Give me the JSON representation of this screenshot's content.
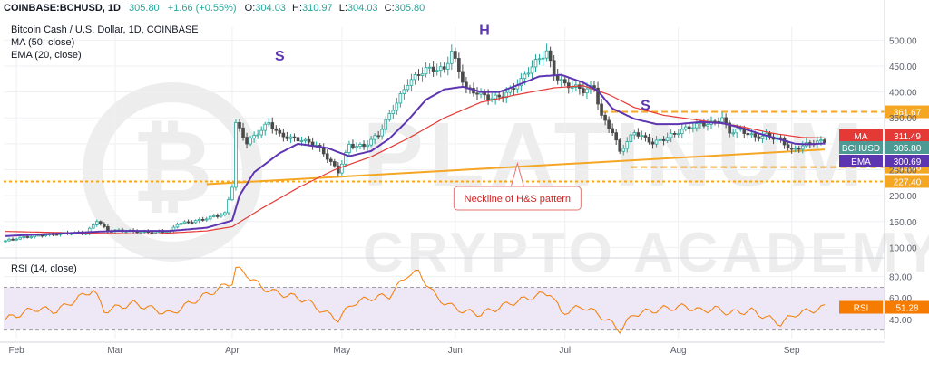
{
  "header": {
    "symbol_line": "COINBASE:BCHUSD, 1D",
    "ohlc": [
      {
        "label": "O:",
        "value": "304.03"
      },
      {
        "label": "H:",
        "value": "310.97"
      },
      {
        "label": "L:",
        "value": "304.03"
      },
      {
        "label": "C:",
        "value": "305.80"
      }
    ],
    "last": "305.80",
    "change": "+1.66 (+0.55%)",
    "title": "Bitcoin Cash / U.S. Dollar, 1D, COINBASE",
    "ma_legend": "MA (50, close)",
    "ema_legend": "EMA (20, close)",
    "rsi_legend": "RSI (14, close)"
  },
  "colors": {
    "candle_up": "#26a69a",
    "candle_down": "#4a4a4a",
    "ma": "#e53935",
    "ema": "#5e35b1",
    "neckline": "#f5a623",
    "level": "#f5a623",
    "rsi": "#f57c00",
    "rsi_band": "#ede7f6",
    "grid": "#eef0f3",
    "annotation_text": "#5e35b1",
    "callout_border": "#e57373",
    "callout_text": "#c62828"
  },
  "watermark": {
    "line1": "PLATINUM",
    "line2": "CRYPTO ACADEMY"
  },
  "chart_data": [
    {
      "type": "candlestick",
      "title": "Bitcoin Cash / U.S. Dollar, 1D, COINBASE",
      "x_labels": [
        "Feb",
        "Mar",
        "Apr",
        "May",
        "Jun",
        "Jul",
        "Aug",
        "Sep"
      ],
      "x_label_day_index": [
        3,
        30,
        62,
        92,
        123,
        153,
        184,
        215
      ],
      "y_ticks": [
        "500.00",
        "450.00",
        "400.00",
        "350.00",
        "300.00",
        "250.00",
        "200.00",
        "150.00",
        "100.00"
      ],
      "ylim": [
        85,
        525
      ],
      "series": [
        {
          "name": "BCHUSD",
          "key_points": [
            [
              0,
              113
            ],
            [
              10,
              125
            ],
            [
              22,
              128
            ],
            [
              25,
              153
            ],
            [
              28,
              132
            ],
            [
              45,
              130
            ],
            [
              47,
              145
            ],
            [
              60,
              164
            ],
            [
              62,
              218
            ],
            [
              63,
              340
            ],
            [
              66,
              305
            ],
            [
              72,
              338
            ],
            [
              75,
              315
            ],
            [
              81,
              310
            ],
            [
              85,
              296
            ],
            [
              91,
              246
            ],
            [
              94,
              300
            ],
            [
              98,
              295
            ],
            [
              102,
              315
            ],
            [
              106,
              370
            ],
            [
              110,
              420
            ],
            [
              115,
              440
            ],
            [
              120,
              445
            ],
            [
              122,
              482
            ],
            [
              126,
              405
            ],
            [
              130,
              392
            ],
            [
              133,
              388
            ],
            [
              137,
              400
            ],
            [
              141,
              420
            ],
            [
              145,
              455
            ],
            [
              148,
              480
            ],
            [
              150,
              438
            ],
            [
              153,
              415
            ],
            [
              158,
              400
            ],
            [
              161,
              410
            ],
            [
              163,
              355
            ],
            [
              166,
              325
            ],
            [
              168,
              284
            ],
            [
              172,
              320
            ],
            [
              177,
              304
            ],
            [
              183,
              318
            ],
            [
              187,
              330
            ],
            [
              190,
              340
            ],
            [
              193,
              342
            ],
            [
              196,
              349
            ],
            [
              198,
              320
            ],
            [
              201,
              325
            ],
            [
              205,
              315
            ],
            [
              208,
              318
            ],
            [
              212,
              305
            ],
            [
              215,
              285
            ],
            [
              218,
              298
            ],
            [
              221,
              306
            ],
            [
              224,
              304
            ]
          ]
        },
        {
          "name": "MA",
          "key_points": [
            [
              0,
              131
            ],
            [
              20,
              128
            ],
            [
              40,
              126
            ],
            [
              55,
              132
            ],
            [
              62,
              140
            ],
            [
              70,
              175
            ],
            [
              80,
              215
            ],
            [
              90,
              250
            ],
            [
              100,
              275
            ],
            [
              110,
              310
            ],
            [
              120,
              350
            ],
            [
              130,
              380
            ],
            [
              140,
              395
            ],
            [
              150,
              408
            ],
            [
              158,
              412
            ],
            [
              165,
              395
            ],
            [
              172,
              370
            ],
            [
              180,
              355
            ],
            [
              190,
              345
            ],
            [
              200,
              335
            ],
            [
              210,
              320
            ],
            [
              218,
              312
            ],
            [
              224,
              311.49
            ]
          ]
        },
        {
          "name": "EMA",
          "key_points": [
            [
              0,
              122
            ],
            [
              15,
              127
            ],
            [
              30,
              132
            ],
            [
              45,
              132
            ],
            [
              55,
              138
            ],
            [
              62,
              152
            ],
            [
              64,
              200
            ],
            [
              68,
              245
            ],
            [
              75,
              282
            ],
            [
              80,
              300
            ],
            [
              88,
              292
            ],
            [
              94,
              276
            ],
            [
              100,
              286
            ],
            [
              105,
              310
            ],
            [
              110,
              345
            ],
            [
              115,
              385
            ],
            [
              120,
              405
            ],
            [
              125,
              410
            ],
            [
              130,
              400
            ],
            [
              135,
              400
            ],
            [
              140,
              413
            ],
            [
              146,
              430
            ],
            [
              152,
              433
            ],
            [
              158,
              418
            ],
            [
              162,
              402
            ],
            [
              166,
              368
            ],
            [
              172,
              348
            ],
            [
              178,
              338
            ],
            [
              184,
              338
            ],
            [
              190,
              342
            ],
            [
              196,
              340
            ],
            [
              200,
              333
            ],
            [
              206,
              320
            ],
            [
              212,
              308
            ],
            [
              216,
              300
            ],
            [
              220,
              299
            ],
            [
              224,
              300.69
            ]
          ]
        }
      ],
      "last_values": {
        "MA": "311.49",
        "BCHUSD": "305.80",
        "EMA": "300.69"
      },
      "price_tags": {
        "MA": "MA",
        "BCHUSD": "BCHUSD",
        "EMA": "EMA"
      },
      "horizontal_levels": [
        {
          "label": "361.67",
          "value": 361.67
        },
        {
          "label": "255.06",
          "value": 255.06
        },
        {
          "label": "227.40",
          "value": 227.4
        }
      ],
      "neckline": {
        "start": [
          55,
          222
        ],
        "end": [
          224,
          289
        ]
      },
      "annotations": [
        {
          "text": "S",
          "at": [
            75,
            460
          ]
        },
        {
          "text": "H",
          "at": [
            131,
            510
          ]
        },
        {
          "text": "S",
          "at": [
            175,
            365
          ]
        }
      ],
      "callout": {
        "text": "Neckline of H&S pattern",
        "anchor": [
          140,
          262
        ]
      }
    },
    {
      "type": "line",
      "title": "RSI (14, close)",
      "ylim": [
        22,
        95
      ],
      "y_ticks": [
        "80.00",
        "60.00",
        "40.00"
      ],
      "band": [
        30,
        70
      ],
      "series": [
        {
          "name": "RSI",
          "key_points": [
            [
              0,
              40
            ],
            [
              8,
              50
            ],
            [
              14,
              48
            ],
            [
              20,
              60
            ],
            [
              24,
              68
            ],
            [
              27,
              48
            ],
            [
              35,
              55
            ],
            [
              45,
              45
            ],
            [
              52,
              58
            ],
            [
              58,
              68
            ],
            [
              62,
              75
            ],
            [
              63,
              88
            ],
            [
              66,
              82
            ],
            [
              70,
              70
            ],
            [
              74,
              65
            ],
            [
              78,
              62
            ],
            [
              82,
              58
            ],
            [
              88,
              45
            ],
            [
              91,
              40
            ],
            [
              95,
              55
            ],
            [
              100,
              60
            ],
            [
              105,
              62
            ],
            [
              110,
              82
            ],
            [
              113,
              84
            ],
            [
              118,
              60
            ],
            [
              122,
              52
            ],
            [
              126,
              47
            ],
            [
              130,
              45
            ],
            [
              138,
              55
            ],
            [
              145,
              62
            ],
            [
              149,
              65
            ],
            [
              152,
              46
            ],
            [
              158,
              52
            ],
            [
              162,
              45
            ],
            [
              165,
              38
            ],
            [
              168,
              30
            ],
            [
              172,
              45
            ],
            [
              180,
              50
            ],
            [
              186,
              52
            ],
            [
              190,
              48
            ],
            [
              194,
              50
            ],
            [
              198,
              46
            ],
            [
              204,
              48
            ],
            [
              208,
              42
            ],
            [
              212,
              36
            ],
            [
              216,
              45
            ],
            [
              220,
              48
            ],
            [
              224,
              51.28
            ]
          ]
        }
      ],
      "last_value": "51.28",
      "tag": "RSI"
    }
  ]
}
